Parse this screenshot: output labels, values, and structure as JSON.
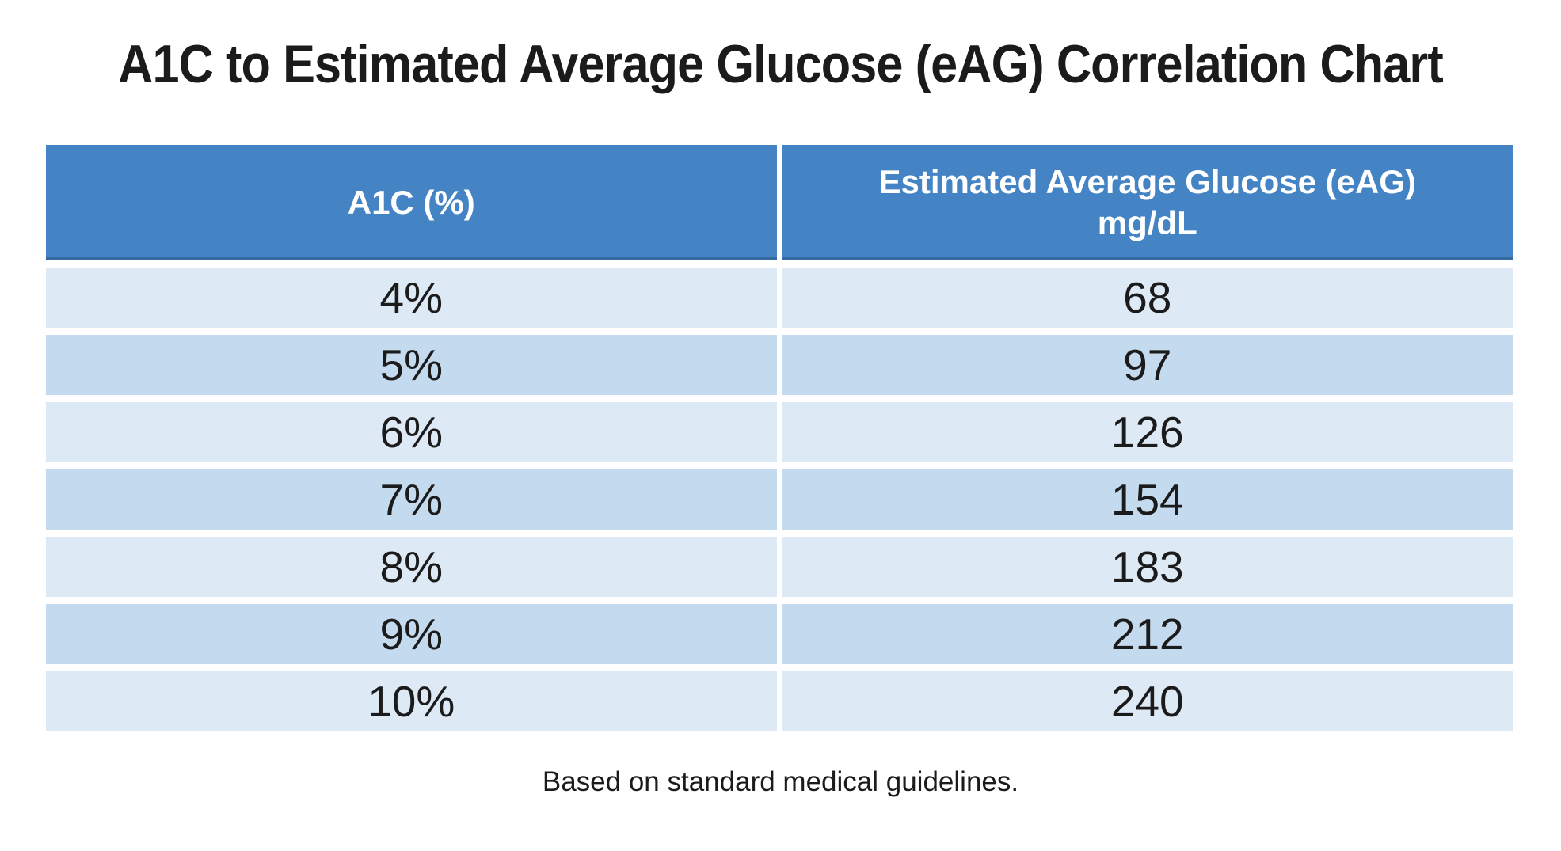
{
  "page": {
    "title": "A1C to Estimated Average Glucose (eAG) Correlation Chart",
    "footnote": "Based on standard medical guidelines."
  },
  "table": {
    "headers": {
      "a1c": "A1C (%)",
      "eag_line1": "Estimated Average Glucose (eAG)",
      "eag_line2": "mg/dL"
    },
    "rows": [
      {
        "a1c": "4%",
        "eag": "68"
      },
      {
        "a1c": "5%",
        "eag": "97"
      },
      {
        "a1c": "6%",
        "eag": "126"
      },
      {
        "a1c": "7%",
        "eag": "154"
      },
      {
        "a1c": "8%",
        "eag": "183"
      },
      {
        "a1c": "9%",
        "eag": "212"
      },
      {
        "a1c": "10%",
        "eag": "240"
      }
    ]
  },
  "colors": {
    "header_bg": "#4484c5",
    "header_bottom_edge": "#4c6f9e",
    "row_light": "#dde9f5",
    "row_dark": "#c4daee",
    "header_text": "#ffffff",
    "body_text": "#1b1b1b",
    "background": "#ffffff"
  },
  "chart_data": {
    "type": "table",
    "title": "A1C to Estimated Average Glucose (eAG) Correlation Chart",
    "columns": [
      "A1C (%)",
      "Estimated Average Glucose (eAG) mg/dL"
    ],
    "rows": [
      [
        "4%",
        68
      ],
      [
        "5%",
        97
      ],
      [
        "6%",
        126
      ],
      [
        "7%",
        154
      ],
      [
        "8%",
        183
      ],
      [
        "9%",
        212
      ],
      [
        "10%",
        240
      ]
    ],
    "footnote": "Based on standard medical guidelines."
  }
}
